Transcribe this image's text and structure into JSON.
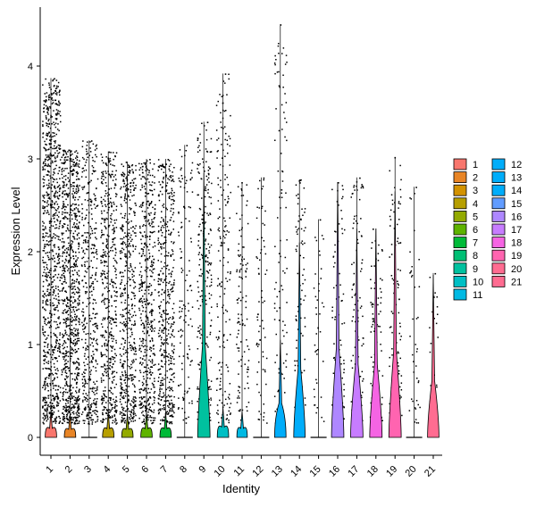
{
  "chart_data": {
    "type": "violin",
    "title": "",
    "xlabel": "Identity",
    "ylabel": "Expression Level",
    "ylim": [
      -0.2,
      4.6
    ],
    "yticks": [
      0,
      1,
      2,
      3,
      4
    ],
    "categories": [
      "1",
      "2",
      "3",
      "4",
      "5",
      "6",
      "7",
      "8",
      "9",
      "10",
      "11",
      "12",
      "13",
      "14",
      "15",
      "16",
      "17",
      "18",
      "19",
      "20",
      "21"
    ],
    "legend": {
      "position": "right",
      "columns": 2
    },
    "colors": [
      "#F8766D",
      "#E88526",
      "#D39200",
      "#B79F00",
      "#93AA00",
      "#5EB300",
      "#00BA38",
      "#00BF74",
      "#00C19F",
      "#00BFC4",
      "#00B9E3",
      "#00ADFA",
      "#619CFF",
      "#AE87FF",
      "#DB72FB",
      "#F564E3",
      "#FF61C3",
      "#FF69A0",
      "#F8766D",
      "#FC717F",
      "#FF6C91"
    ],
    "series": [
      {
        "name": "1",
        "color": "#F8766D",
        "max": 3.87,
        "point_count": 900,
        "spread": 1.0,
        "violin_height": 0.28,
        "violin_width": 0.55
      },
      {
        "name": "2",
        "color": "#E88526",
        "max": 3.1,
        "point_count": 850,
        "spread": 1.0,
        "violin_height": 0.25,
        "violin_width": 0.55
      },
      {
        "name": "3",
        "color": "#D39200",
        "max": 3.2,
        "point_count": 420,
        "spread": 0.9,
        "violin_height": 0.0,
        "violin_width": 0.0
      },
      {
        "name": "4",
        "color": "#B79F00",
        "max": 3.08,
        "point_count": 500,
        "spread": 0.9,
        "violin_height": 0.27,
        "violin_width": 0.55
      },
      {
        "name": "5",
        "color": "#93AA00",
        "max": 2.97,
        "point_count": 520,
        "spread": 0.9,
        "violin_height": 0.25,
        "violin_width": 0.55
      },
      {
        "name": "6",
        "color": "#5EB300",
        "max": 3.0,
        "point_count": 500,
        "spread": 0.9,
        "violin_height": 0.27,
        "violin_width": 0.55
      },
      {
        "name": "7",
        "color": "#00BA38",
        "max": 3.0,
        "point_count": 480,
        "spread": 0.9,
        "violin_height": 0.27,
        "violin_width": 0.55
      },
      {
        "name": "8",
        "color": "#00BF74",
        "max": 3.15,
        "point_count": 120,
        "spread": 0.8,
        "violin_height": 0.0,
        "violin_width": 0.0
      },
      {
        "name": "9",
        "color": "#00C19F",
        "max": 3.4,
        "point_count": 260,
        "spread": 0.8,
        "violin_height": 2.85,
        "violin_width": 0.6
      },
      {
        "name": "10",
        "color": "#00BFC4",
        "max": 3.92,
        "point_count": 180,
        "spread": 0.8,
        "violin_height": 0.32,
        "violin_width": 0.55
      },
      {
        "name": "11",
        "color": "#00B9E3",
        "max": 2.75,
        "point_count": 110,
        "spread": 0.7,
        "violin_height": 0.28,
        "violin_width": 0.5
      },
      {
        "name": "12",
        "color": "#00ADFA",
        "max": 2.8,
        "point_count": 70,
        "spread": 0.6,
        "violin_height": 0.0,
        "violin_width": 0.0
      },
      {
        "name": "13",
        "color": "#00ADFA",
        "max": 4.45,
        "point_count": 100,
        "spread": 0.7,
        "violin_height": 1.05,
        "violin_width": 0.55
      },
      {
        "name": "14",
        "color": "#00ADFA",
        "max": 2.78,
        "point_count": 90,
        "spread": 0.6,
        "violin_height": 2.1,
        "violin_width": 0.55
      },
      {
        "name": "15",
        "color": "#619CFF",
        "max": 2.35,
        "point_count": 40,
        "spread": 0.6,
        "violin_height": 0.0,
        "violin_width": 0.0
      },
      {
        "name": "16",
        "color": "#AE87FF",
        "max": 2.75,
        "point_count": 90,
        "spread": 0.7,
        "violin_height": 2.75,
        "violin_width": 0.6
      },
      {
        "name": "17",
        "color": "#C77CFF",
        "max": 2.8,
        "point_count": 100,
        "spread": 0.7,
        "violin_height": 2.25,
        "violin_width": 0.6
      },
      {
        "name": "18",
        "color": "#F564E3",
        "max": 2.25,
        "point_count": 90,
        "spread": 0.7,
        "violin_height": 2.25,
        "violin_width": 0.6
      },
      {
        "name": "19",
        "color": "#FF64B0",
        "max": 3.02,
        "point_count": 110,
        "spread": 0.7,
        "violin_height": 2.65,
        "violin_width": 0.6
      },
      {
        "name": "20",
        "color": "#FF6C91",
        "max": 2.7,
        "point_count": 40,
        "spread": 0.6,
        "violin_height": 0.0,
        "violin_width": 0.0
      },
      {
        "name": "21",
        "color": "#FF6C91",
        "max": 1.77,
        "point_count": 25,
        "spread": 0.5,
        "violin_height": 1.75,
        "violin_width": 0.55
      }
    ]
  }
}
